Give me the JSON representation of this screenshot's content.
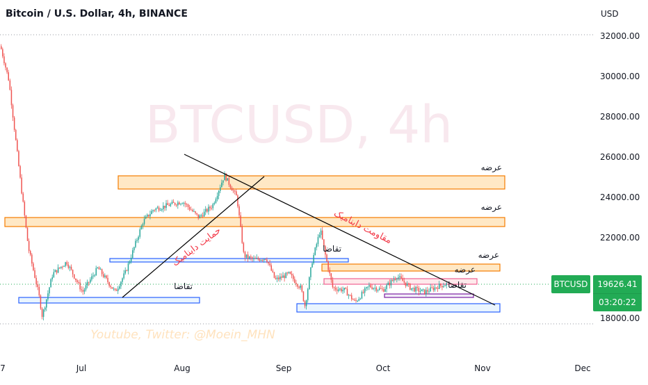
{
  "header": {
    "title": "Bitcoin / U.S. Dollar, 4h, BINANCE"
  },
  "watermark": {
    "main": "BTCUSD, 4h",
    "secondary": "Youtube, Twitter: @Moein_MHN"
  },
  "axis": {
    "currency_label": "USD",
    "y_ticks": [
      "32000.00",
      "30000.00",
      "28000.00",
      "26000.00",
      "24000.00",
      "22000.00",
      "18000.00"
    ],
    "x_ticks": [
      "7",
      "Jul",
      "Aug",
      "Sep",
      "Oct",
      "Nov",
      "Dec"
    ]
  },
  "price_tag": {
    "symbol": "BTCUSD",
    "last_price": "19626.41",
    "countdown": "03:20:22"
  },
  "annotations": {
    "supply": "عرضه",
    "demand": "تقاضا",
    "dynamic_resistance": "مقاومت داینامیک",
    "dynamic_support": "حمایت داینامیک"
  },
  "colors": {
    "up": "#26a69a",
    "down": "#ef5350",
    "supply_fill": "#ffe0b2",
    "supply_border": "#f57c00",
    "demand_border": "#2962ff",
    "price_tag": "#22ab55",
    "annotation_red": "#f23645"
  },
  "chart_data": {
    "type": "candlestick",
    "title": "Bitcoin / U.S. Dollar, 4h, BINANCE",
    "timeframe": "4h",
    "x_range": [
      "Jun 2022",
      "Dec 2022"
    ],
    "ylim": [
      17700,
      32000
    ],
    "last_price": 19626.41,
    "approx_close_path": [
      {
        "x": "early Jun",
        "y": 31500
      },
      {
        "x": "mid Jun",
        "y": 20500
      },
      {
        "x": "late Jun",
        "y": 19200
      },
      {
        "x": "mid Jul",
        "y": 20500
      },
      {
        "x": "late Jul",
        "y": 23500
      },
      {
        "x": "mid Aug",
        "y": 24800
      },
      {
        "x": "late Aug",
        "y": 21000
      },
      {
        "x": "early Sep",
        "y": 19800
      },
      {
        "x": "mid Sep",
        "y": 22500
      },
      {
        "x": "late Sep",
        "y": 19200
      },
      {
        "x": "early Oct",
        "y": 19800
      },
      {
        "x": "mid Oct",
        "y": 19300
      },
      {
        "x": "late Oct",
        "y": 19626
      }
    ],
    "zones": [
      {
        "kind": "supply",
        "low": 24000,
        "high": 24700
      },
      {
        "kind": "supply",
        "low": 22400,
        "high": 22900
      },
      {
        "kind": "supply",
        "low": 20400,
        "high": 20700
      },
      {
        "kind": "supply",
        "low": 19600,
        "high": 19900
      },
      {
        "kind": "demand",
        "low": 20700,
        "high": 20850
      },
      {
        "kind": "demand",
        "low": 18800,
        "high": 19050
      },
      {
        "kind": "demand",
        "low": 18200,
        "high": 18500
      },
      {
        "kind": "demand",
        "low": 19200,
        "high": 19350
      }
    ]
  }
}
